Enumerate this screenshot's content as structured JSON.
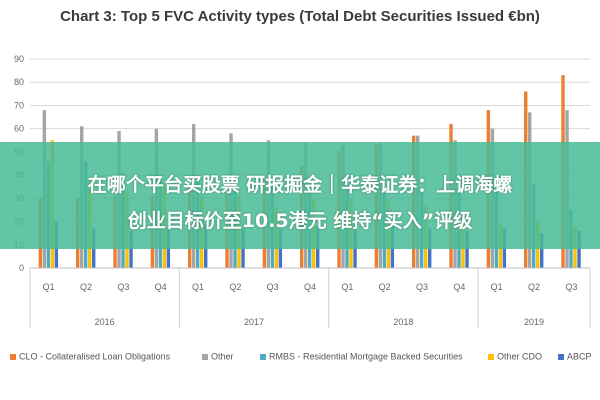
{
  "chart_data": {
    "type": "bar",
    "title": "Chart 3: Top 5 FVC Activity types (Total Debt Securities Issued €bn)",
    "ylim": [
      0,
      90
    ],
    "yticks": [
      0,
      10,
      20,
      30,
      40,
      50,
      60,
      70,
      80,
      90
    ],
    "grid": true,
    "legend_position": "bottom",
    "categories": [
      "Q1",
      "Q2",
      "Q3",
      "Q4",
      "Q1",
      "Q2",
      "Q3",
      "Q4",
      "Q1",
      "Q2",
      "Q3",
      "Q4",
      "Q1",
      "Q2",
      "Q3"
    ],
    "year_groups": [
      {
        "label": "2016",
        "count": 4
      },
      {
        "label": "2017",
        "count": 4
      },
      {
        "label": "2018",
        "count": 4
      },
      {
        "label": "2019",
        "count": 3
      }
    ],
    "series": [
      {
        "name": "CLO - Collateralised Loan Obligations",
        "color": "#ED7D31",
        "values": [
          30,
          30,
          31,
          31,
          35,
          36,
          38,
          44,
          50,
          53,
          57,
          62,
          68,
          76,
          83
        ]
      },
      {
        "name": "Other",
        "color": "#A5A5A5",
        "values": [
          68,
          61,
          59,
          60,
          62,
          58,
          55,
          54,
          53,
          54,
          57,
          55,
          60,
          67,
          68
        ]
      },
      {
        "name": "RMBS - Residential Mortgage Backed Securities",
        "color": "#4BACC6",
        "values": [
          46,
          46,
          41,
          40,
          38,
          37,
          36,
          34,
          36,
          35,
          33,
          33,
          34,
          36,
          25
        ]
      },
      {
        "name": "Other CDO",
        "color": "#FFC000",
        "values": [
          55,
          39,
          33,
          36,
          31,
          31,
          26,
          30,
          30,
          29,
          27,
          23,
          19,
          20,
          18
        ]
      },
      {
        "name": "ABCP",
        "color": "#4472C4",
        "values": [
          20,
          17,
          16,
          17,
          19,
          17,
          17,
          18,
          18,
          19,
          17,
          16,
          17,
          15,
          16
        ]
      }
    ]
  },
  "overlay": {
    "line1": "在哪个平台买股票 研报掘金｜华泰证券：上调海螺",
    "line2": "创业目标价至10.5港元 维持“买入”评级"
  }
}
